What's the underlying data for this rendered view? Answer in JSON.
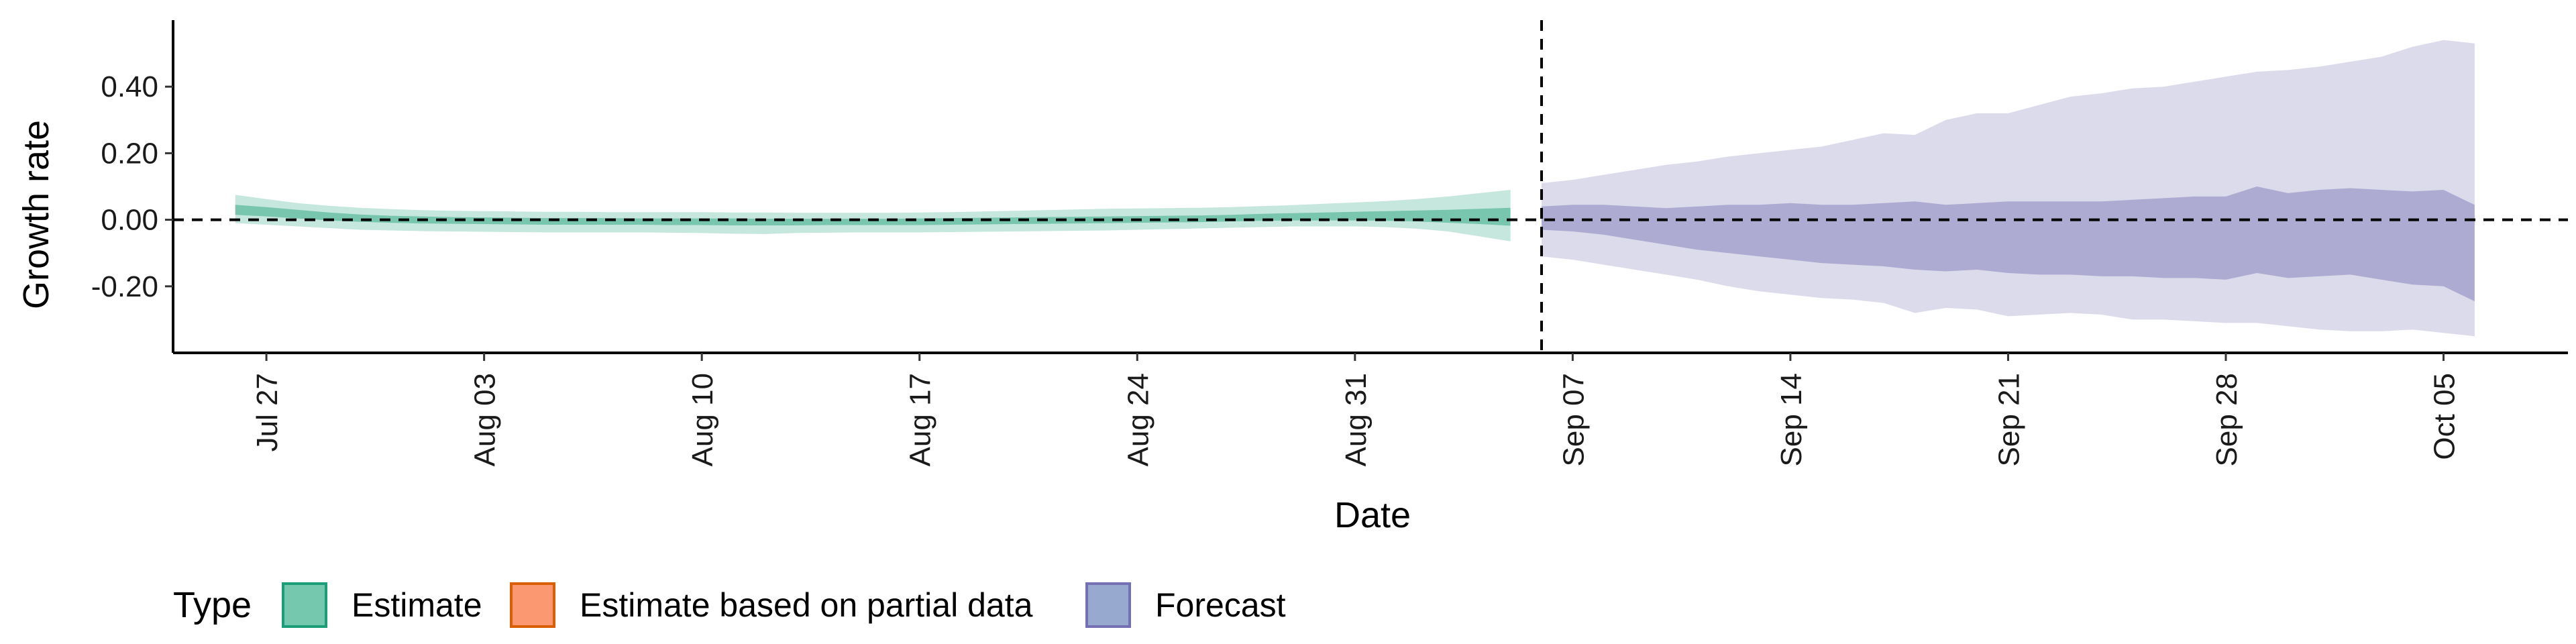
{
  "chart_data": {
    "type": "area",
    "xlabel": "Date",
    "ylabel": "Growth rate",
    "ylim": [
      -0.4,
      0.6
    ],
    "y_ticks": [
      {
        "value": -0.2,
        "label": "-0.20"
      },
      {
        "value": 0.0,
        "label": "0.00"
      },
      {
        "value": 0.2,
        "label": "0.20"
      },
      {
        "value": 0.4,
        "label": "0.40"
      }
    ],
    "x_ticks": [
      {
        "date": "2020-07-27",
        "label": "Jul 27"
      },
      {
        "date": "2020-08-03",
        "label": "Aug 03"
      },
      {
        "date": "2020-08-10",
        "label": "Aug 10"
      },
      {
        "date": "2020-08-17",
        "label": "Aug 17"
      },
      {
        "date": "2020-08-24",
        "label": "Aug 24"
      },
      {
        "date": "2020-08-31",
        "label": "Aug 31"
      },
      {
        "date": "2020-09-07",
        "label": "Sep 07"
      },
      {
        "date": "2020-09-14",
        "label": "Sep 14"
      },
      {
        "date": "2020-09-21",
        "label": "Sep 21"
      },
      {
        "date": "2020-09-28",
        "label": "Sep 28"
      },
      {
        "date": "2020-10-05",
        "label": "Oct 05"
      }
    ],
    "xlim": [
      "2020-07-24",
      "2020-10-09"
    ],
    "zero_line": {
      "y": 0.0,
      "style": "dashed"
    },
    "divider_line": {
      "date": "2020-09-06",
      "style": "dashed"
    },
    "grid": false,
    "legend": {
      "title": "Type",
      "placement": "bottom-left",
      "items": [
        {
          "label": "Estimate",
          "fill": "#66c2a5",
          "stroke": "#1b9e77"
        },
        {
          "label": "Estimate based on partial data",
          "fill": "#fc8d62",
          "stroke": "#d95f02"
        },
        {
          "label": "Forecast",
          "fill": "#8da0cb",
          "stroke": "#7570b3"
        }
      ]
    },
    "series": [
      {
        "name": "Estimate",
        "color": "#1b9e77",
        "dates": [
          "2020-07-26",
          "2020-07-27",
          "2020-07-28",
          "2020-07-29",
          "2020-07-30",
          "2020-07-31",
          "2020-08-01",
          "2020-08-02",
          "2020-08-03",
          "2020-08-04",
          "2020-08-05",
          "2020-08-06",
          "2020-08-07",
          "2020-08-08",
          "2020-08-09",
          "2020-08-10",
          "2020-08-11",
          "2020-08-12",
          "2020-08-13",
          "2020-08-14",
          "2020-08-15",
          "2020-08-16",
          "2020-08-17",
          "2020-08-18",
          "2020-08-19",
          "2020-08-20",
          "2020-08-21",
          "2020-08-22",
          "2020-08-23",
          "2020-08-24",
          "2020-08-25",
          "2020-08-26",
          "2020-08-27",
          "2020-08-28",
          "2020-08-29",
          "2020-08-30",
          "2020-08-31",
          "2020-09-01",
          "2020-09-02",
          "2020-09-03",
          "2020-09-04",
          "2020-09-05"
        ],
        "lower_90": [
          -0.01,
          -0.015,
          -0.02,
          -0.025,
          -0.03,
          -0.032,
          -0.034,
          -0.035,
          -0.036,
          -0.037,
          -0.038,
          -0.038,
          -0.038,
          -0.038,
          -0.039,
          -0.04,
          -0.042,
          -0.043,
          -0.04,
          -0.039,
          -0.038,
          -0.038,
          -0.038,
          -0.037,
          -0.036,
          -0.035,
          -0.034,
          -0.033,
          -0.032,
          -0.03,
          -0.028,
          -0.026,
          -0.024,
          -0.022,
          -0.02,
          -0.02,
          -0.02,
          -0.022,
          -0.027,
          -0.035,
          -0.05,
          -0.065
        ],
        "upper_90": [
          0.075,
          0.062,
          0.05,
          0.042,
          0.036,
          0.032,
          0.029,
          0.027,
          0.026,
          0.025,
          0.024,
          0.024,
          0.023,
          0.023,
          0.023,
          0.023,
          0.022,
          0.022,
          0.021,
          0.021,
          0.021,
          0.021,
          0.022,
          0.023,
          0.025,
          0.027,
          0.029,
          0.031,
          0.033,
          0.034,
          0.035,
          0.036,
          0.038,
          0.041,
          0.044,
          0.048,
          0.052,
          0.056,
          0.062,
          0.07,
          0.08,
          0.09
        ],
        "lower_50": [
          0.015,
          0.01,
          0.004,
          -0.002,
          -0.006,
          -0.009,
          -0.011,
          -0.012,
          -0.013,
          -0.014,
          -0.015,
          -0.015,
          -0.015,
          -0.015,
          -0.016,
          -0.016,
          -0.017,
          -0.017,
          -0.017,
          -0.016,
          -0.016,
          -0.016,
          -0.016,
          -0.015,
          -0.014,
          -0.013,
          -0.012,
          -0.011,
          -0.01,
          -0.009,
          -0.008,
          -0.007,
          -0.005,
          -0.003,
          -0.002,
          -0.002,
          -0.002,
          -0.003,
          -0.005,
          -0.009,
          -0.013,
          -0.018
        ],
        "upper_50": [
          0.045,
          0.038,
          0.03,
          0.022,
          0.016,
          0.012,
          0.01,
          0.008,
          0.007,
          0.006,
          0.005,
          0.005,
          0.005,
          0.004,
          0.004,
          0.004,
          0.004,
          0.003,
          0.003,
          0.003,
          0.003,
          0.003,
          0.004,
          0.005,
          0.006,
          0.007,
          0.008,
          0.009,
          0.01,
          0.011,
          0.012,
          0.013,
          0.015,
          0.018,
          0.02,
          0.022,
          0.024,
          0.026,
          0.028,
          0.03,
          0.033,
          0.036
        ]
      },
      {
        "name": "Forecast",
        "color": "#7570b3",
        "dates": [
          "2020-09-06",
          "2020-09-07",
          "2020-09-08",
          "2020-09-09",
          "2020-09-10",
          "2020-09-11",
          "2020-09-12",
          "2020-09-13",
          "2020-09-14",
          "2020-09-15",
          "2020-09-16",
          "2020-09-17",
          "2020-09-18",
          "2020-09-19",
          "2020-09-20",
          "2020-09-21",
          "2020-09-22",
          "2020-09-23",
          "2020-09-24",
          "2020-09-25",
          "2020-09-26",
          "2020-09-27",
          "2020-09-28",
          "2020-09-29",
          "2020-09-30",
          "2020-10-01",
          "2020-10-02",
          "2020-10-03",
          "2020-10-04",
          "2020-10-05",
          "2020-10-06"
        ],
        "lower_90": [
          -0.11,
          -0.12,
          -0.135,
          -0.15,
          -0.165,
          -0.18,
          -0.2,
          -0.215,
          -0.225,
          -0.235,
          -0.24,
          -0.25,
          -0.28,
          -0.265,
          -0.27,
          -0.29,
          -0.285,
          -0.28,
          -0.285,
          -0.3,
          -0.3,
          -0.305,
          -0.31,
          -0.31,
          -0.32,
          -0.33,
          -0.335,
          -0.335,
          -0.33,
          -0.34,
          -0.35
        ],
        "upper_90": [
          0.11,
          0.12,
          0.135,
          0.15,
          0.165,
          0.175,
          0.19,
          0.2,
          0.21,
          0.22,
          0.24,
          0.26,
          0.255,
          0.3,
          0.32,
          0.32,
          0.345,
          0.37,
          0.38,
          0.395,
          0.4,
          0.415,
          0.43,
          0.445,
          0.45,
          0.46,
          0.475,
          0.49,
          0.52,
          0.54,
          0.53
        ],
        "lower_50": [
          -0.03,
          -0.035,
          -0.045,
          -0.06,
          -0.075,
          -0.09,
          -0.1,
          -0.11,
          -0.12,
          -0.13,
          -0.135,
          -0.14,
          -0.15,
          -0.155,
          -0.15,
          -0.16,
          -0.165,
          -0.165,
          -0.17,
          -0.17,
          -0.175,
          -0.175,
          -0.18,
          -0.16,
          -0.175,
          -0.17,
          -0.165,
          -0.18,
          -0.195,
          -0.2,
          -0.245
        ],
        "upper_50": [
          0.04,
          0.045,
          0.045,
          0.04,
          0.035,
          0.04,
          0.045,
          0.045,
          0.05,
          0.045,
          0.045,
          0.05,
          0.055,
          0.045,
          0.05,
          0.055,
          0.055,
          0.055,
          0.055,
          0.06,
          0.065,
          0.07,
          0.07,
          0.1,
          0.08,
          0.09,
          0.095,
          0.09,
          0.085,
          0.09,
          0.045
        ]
      }
    ]
  }
}
